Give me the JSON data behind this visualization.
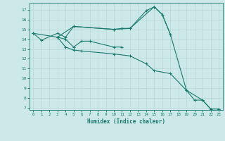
{
  "title": "",
  "xlabel": "Humidex (Indice chaleur)",
  "ylabel": "",
  "background_color": "#cce8e8",
  "grid_color": "#b8d8d8",
  "line_color": "#1a7a6e",
  "ylim": [
    6.8,
    17.7
  ],
  "xlim": [
    -0.5,
    23.5
  ],
  "yticks": [
    7,
    8,
    9,
    10,
    11,
    12,
    13,
    14,
    15,
    16,
    17
  ],
  "xticks": [
    0,
    1,
    2,
    3,
    4,
    5,
    6,
    7,
    8,
    9,
    10,
    11,
    12,
    13,
    14,
    15,
    16,
    17,
    18,
    19,
    20,
    21,
    22,
    23
  ],
  "line1_x": [
    0,
    1,
    3,
    4,
    5,
    10,
    11,
    12,
    14,
    15,
    16,
    17
  ],
  "line1_y": [
    14.6,
    13.9,
    14.6,
    14.2,
    15.3,
    15.0,
    15.1,
    15.1,
    16.9,
    17.3,
    16.5,
    14.5
  ],
  "line2_x": [
    3,
    4,
    5,
    6,
    7,
    10,
    11
  ],
  "line2_y": [
    14.2,
    14.0,
    13.2,
    13.8,
    13.8,
    13.2,
    13.2
  ],
  "line3_x": [
    0,
    3,
    4,
    5,
    6,
    10,
    12,
    14,
    15,
    17,
    19,
    20,
    21,
    22,
    23
  ],
  "line3_y": [
    14.6,
    14.2,
    13.2,
    12.9,
    12.8,
    12.5,
    12.3,
    11.5,
    10.8,
    10.5,
    8.8,
    7.8,
    7.8,
    6.9,
    6.9
  ],
  "line4_x": [
    3,
    5,
    10,
    12,
    15,
    16,
    17,
    19,
    21,
    22,
    23
  ],
  "line4_y": [
    14.2,
    15.3,
    15.0,
    15.1,
    17.3,
    16.5,
    14.5,
    8.8,
    7.8,
    6.9,
    6.9
  ]
}
